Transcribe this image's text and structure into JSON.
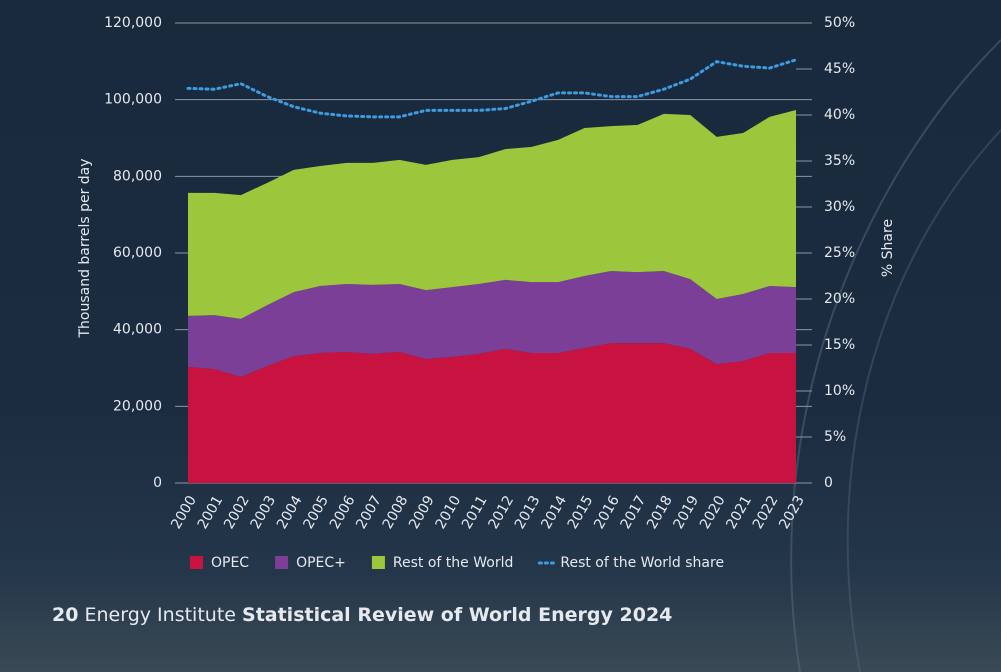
{
  "chart_data": {
    "type": "area",
    "stacked": true,
    "y_label": "Thousand barrels per day",
    "y2_label": "% Share",
    "categories": [
      "2000",
      "2001",
      "2002",
      "2003",
      "2004",
      "2005",
      "2006",
      "2007",
      "2008",
      "2009",
      "2010",
      "2011",
      "2012",
      "2013",
      "2014",
      "2015",
      "2016",
      "2017",
      "2018",
      "2019",
      "2020",
      "2021",
      "2022",
      "2023"
    ],
    "series": [
      {
        "name": "OPEC",
        "color": "#c8123f",
        "values": [
          30300,
          29700,
          27700,
          30500,
          33100,
          33900,
          34200,
          33700,
          34200,
          32300,
          32900,
          33700,
          35000,
          33900,
          33900,
          35200,
          36500,
          36500,
          36500,
          35000,
          31000,
          31800,
          33900,
          33900
        ]
      },
      {
        "name": "OPEC+",
        "color": "#7b3f98",
        "values": [
          13300,
          14100,
          15100,
          15900,
          16700,
          17500,
          17700,
          18000,
          17700,
          18000,
          18200,
          18200,
          18000,
          18500,
          18500,
          18800,
          18800,
          18500,
          18800,
          18200,
          17000,
          17500,
          17500,
          17200
        ]
      },
      {
        "name": "Rest of the World",
        "color": "#9cc63b",
        "values": [
          32100,
          31900,
          32300,
          31900,
          31900,
          31300,
          31600,
          31800,
          32400,
          32700,
          33200,
          33100,
          34100,
          35300,
          37100,
          38600,
          37800,
          38400,
          41000,
          42800,
          42300,
          42000,
          44100,
          46200
        ]
      },
      {
        "name": "Rest of the World share",
        "color": "#3d9be0",
        "axis": "y2",
        "line_style": "dotted",
        "values": [
          42.9,
          42.8,
          43.4,
          42.0,
          40.9,
          40.2,
          39.9,
          39.8,
          39.8,
          40.5,
          40.5,
          40.5,
          40.7,
          41.5,
          42.4,
          42.4,
          42.0,
          42.0,
          42.8,
          43.9,
          45.8,
          45.3,
          45.1,
          46.0
        ]
      }
    ],
    "ylim": [
      0,
      120000
    ],
    "yticks": [
      0,
      {
        "value": 20000,
        "label": "20,000"
      },
      {
        "value": 40000,
        "label": "40,000"
      },
      {
        "value": 60000,
        "label": "60,000"
      },
      {
        "value": 80000,
        "label": "80,000"
      },
      {
        "value": 100000,
        "label": "100,000"
      },
      {
        "value": 120000,
        "label": "120,000"
      }
    ],
    "y2lim": [
      0,
      50
    ],
    "y2ticks": [
      0,
      {
        "value": 5,
        "label": "5%"
      },
      {
        "value": 10,
        "label": "10%"
      },
      {
        "value": 15,
        "label": "15%"
      },
      {
        "value": 20,
        "label": "20%"
      },
      {
        "value": 25,
        "label": "25%"
      },
      {
        "value": 30,
        "label": "30%"
      },
      {
        "value": 35,
        "label": "35%"
      },
      {
        "value": 40,
        "label": "40%"
      },
      {
        "value": 45,
        "label": "45%"
      },
      {
        "value": 50,
        "label": "50%"
      }
    ],
    "grid": true,
    "legend": "bottom"
  },
  "footer": {
    "page": "20",
    "publisher": "Energy Institute",
    "title": "Statistical Review of World Energy 2024"
  }
}
